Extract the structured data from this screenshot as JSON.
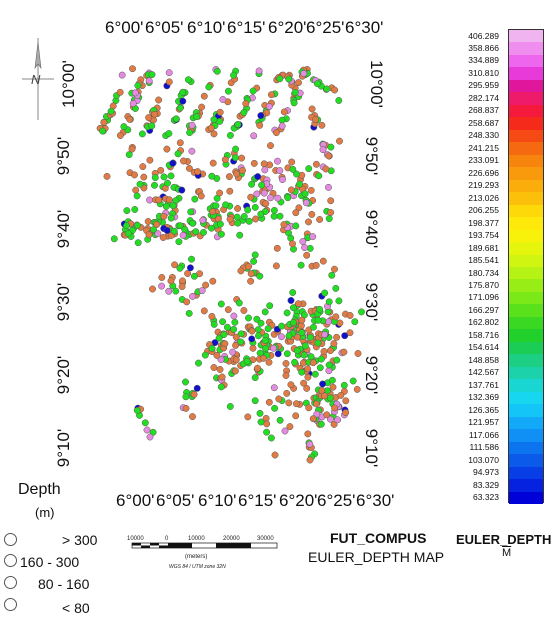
{
  "map": {
    "top_ticks": [
      "6°00'",
      "6°05'",
      "6°10'",
      "6°15'",
      "6°20'",
      "6°25'",
      "6°30'"
    ],
    "bottom_ticks": [
      "6°00'",
      "6°05'",
      "6°10'",
      "6°15'",
      "6°20'",
      "6°25'",
      "6°30'"
    ],
    "left_ticks": [
      "10°00'",
      "9°50'",
      "9°40'",
      "9°30'",
      "9°20'",
      "9°10'"
    ],
    "right_ticks": [
      "10°00'",
      "9°50'",
      "9°40'",
      "9°30'",
      "9°20'",
      "9°10'"
    ],
    "north_label": "N"
  },
  "legend": {
    "title": "Depth",
    "unit": "(m)",
    "classes": [
      {
        "label": ">  300",
        "color": "#e38bde"
      },
      {
        "label": "160  -  300",
        "color": "#e07b45"
      },
      {
        "label": "80  -  160",
        "color": "#22dd22"
      },
      {
        "label": "<  80",
        "color": "#1111cc"
      }
    ]
  },
  "scalebar": {
    "labels": [
      "10000",
      "0",
      "10000",
      "20000",
      "30000"
    ],
    "unit": "(meters)",
    "projection": "WGS 84 / UTM zone 32N"
  },
  "titles": {
    "project": "FUT_COMPUS",
    "subtitle": "EULER_DEPTH MAP"
  },
  "colorbar": {
    "title": "EULER_DEPTH",
    "unit": "M",
    "values": [
      "406.289",
      "358.866",
      "334.889",
      "310.810",
      "295.959",
      "282.174",
      "268.837",
      "258.687",
      "248.330",
      "241.215",
      "233.091",
      "226.696",
      "219.293",
      "213.026",
      "206.255",
      "198.377",
      "193.754",
      "189.681",
      "185.541",
      "180.734",
      "175.870",
      "171.096",
      "166.297",
      "162.802",
      "158.716",
      "154.614",
      "148.858",
      "142.567",
      "137.761",
      "132.369",
      "126.365",
      "121.957",
      "117.066",
      "111.586",
      "103.070",
      "94.973",
      "83.329",
      "63.323"
    ],
    "colors": [
      "#f0b4f0",
      "#f08ef0",
      "#ee66ee",
      "#e83ad8",
      "#e0179c",
      "#ee1a6a",
      "#f51a3c",
      "#f52a1a",
      "#f54a14",
      "#f56a10",
      "#f7850d",
      "#f99a0c",
      "#fbae0b",
      "#fdc00a",
      "#fed90a",
      "#fee90a",
      "#f8f20a",
      "#e6f50c",
      "#cff510",
      "#b6f214",
      "#99ed16",
      "#7be818",
      "#5be01c",
      "#3ad822",
      "#22d02c",
      "#1ccd55",
      "#1ccf82",
      "#1cd2ab",
      "#1ad6d2",
      "#17d6ef",
      "#14c6f8",
      "#12aaf8",
      "#1090f5",
      "#0d74f0",
      "#0b5aea",
      "#083ee6",
      "#0522e0",
      "#0000d8"
    ]
  }
}
